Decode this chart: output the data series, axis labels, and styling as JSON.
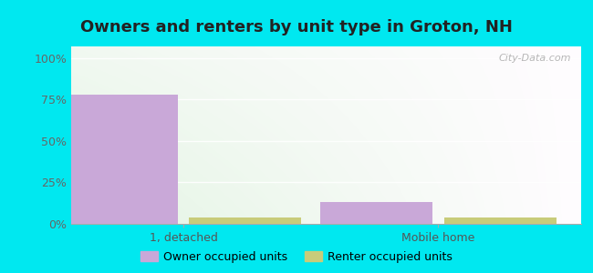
{
  "title": "Owners and renters by unit type in Groton, NH",
  "categories": [
    "1, detached",
    "Mobile home"
  ],
  "owner_values": [
    78,
    13
  ],
  "renter_values": [
    4,
    4
  ],
  "owner_color": "#c9a8d8",
  "renter_color": "#c8cc7a",
  "owner_label": "Owner occupied units",
  "renter_label": "Renter occupied units",
  "yticks": [
    0,
    25,
    50,
    75,
    100
  ],
  "ytick_labels": [
    "0%",
    "25%",
    "50%",
    "75%",
    "100%"
  ],
  "ylim": [
    0,
    107
  ],
  "outer_bg": "#00e8f0",
  "watermark": "City-Data.com",
  "bar_width": 0.22,
  "title_fontsize": 13
}
